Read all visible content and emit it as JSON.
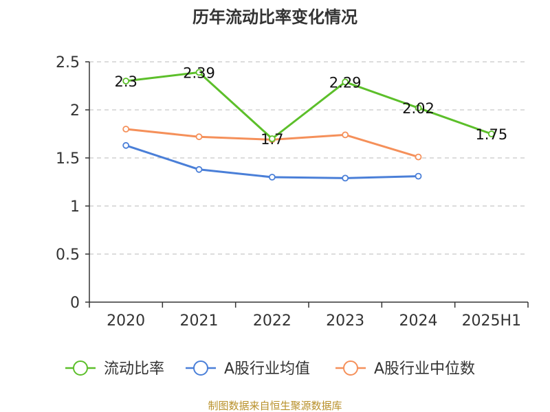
{
  "chart_data": {
    "type": "line",
    "title": "历年流动比率变化情况",
    "categories": [
      "2020",
      "2021",
      "2022",
      "2023",
      "2024",
      "2025H1"
    ],
    "ylim": [
      0,
      2.5
    ],
    "yticks": [
      "0",
      "0.5",
      "1",
      "1.5",
      "2",
      "2.5"
    ],
    "grid": true,
    "legend_position": "bottom",
    "series": [
      {
        "name": "流动比率",
        "color": "#5cbf2a",
        "values": [
          2.3,
          2.39,
          1.7,
          2.29,
          2.02,
          1.75
        ],
        "labels": [
          "2.3",
          "2.39",
          "1.7",
          "2.29",
          "2.02",
          "1.75"
        ],
        "show_labels": true
      },
      {
        "name": "A股行业均值",
        "color": "#4a7fd8",
        "values": [
          1.63,
          1.38,
          1.3,
          1.29,
          1.31,
          null
        ],
        "show_labels": false
      },
      {
        "name": "A股行业中位数",
        "color": "#f5905a",
        "values": [
          1.8,
          1.72,
          1.69,
          1.74,
          1.51,
          null
        ],
        "show_labels": false
      }
    ]
  },
  "footer": "制图数据来自恒生聚源数据库"
}
